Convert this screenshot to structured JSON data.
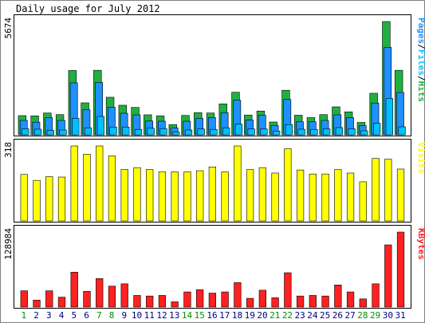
{
  "chart_data": {
    "type": "bar",
    "title": "Daily usage for July 2012",
    "categories": [
      "1",
      "2",
      "3",
      "4",
      "5",
      "6",
      "7",
      "8",
      "9",
      "10",
      "11",
      "12",
      "13",
      "14",
      "15",
      "16",
      "17",
      "18",
      "19",
      "20",
      "21",
      "22",
      "23",
      "24",
      "25",
      "26",
      "27",
      "28",
      "29",
      "30",
      "31"
    ],
    "weekend_days": [
      "1",
      "7",
      "8",
      "14",
      "15",
      "21",
      "22",
      "28",
      "29"
    ],
    "colors": {
      "pages": "#1e90ff",
      "files": "#00bfff",
      "hits": "#20b040",
      "visits": "#ffff00",
      "kbytes": "#ff2020",
      "weekday_label": "#000080",
      "weekend_label": "#009000"
    },
    "panels": [
      {
        "name": "hits-files-pages",
        "max_label": "5674",
        "ymax": 5674,
        "side_label_parts": [
          {
            "text": "Pages",
            "color": "#1e90ff"
          },
          {
            "text": "/",
            "color": "#000000"
          },
          {
            "text": "Files",
            "color": "#00bfff"
          },
          {
            "text": "/",
            "color": "#000000"
          },
          {
            "text": "Hits",
            "color": "#20b040"
          }
        ],
        "series": [
          {
            "name": "Hits",
            "color": "#20b040",
            "values": [
              960,
              950,
              1090,
              1010,
              3220,
              1600,
              3230,
              1880,
              1480,
              1370,
              1000,
              950,
              510,
              970,
              1110,
              1090,
              1550,
              2130,
              990,
              1190,
              640,
              2230,
              980,
              860,
              1010,
              1400,
              1150,
              620,
              2080,
              5674,
              3230
            ]
          },
          {
            "name": "Files",
            "color": "#1e90ff",
            "values": [
              720,
              630,
              860,
              720,
              2600,
              1250,
              2620,
              1380,
              1080,
              1000,
              690,
              680,
              350,
              680,
              820,
              860,
              1110,
              1730,
              740,
              980,
              470,
              1770,
              650,
              650,
              720,
              1000,
              860,
              460,
              1590,
              4380,
              2120
            ]
          },
          {
            "name": "Pages",
            "color": "#00bfff",
            "values": [
              300,
              280,
              220,
              240,
              820,
              350,
              920,
              390,
              390,
              270,
              330,
              310,
              140,
              240,
              290,
              270,
              350,
              530,
              290,
              290,
              190,
              510,
              280,
              270,
              300,
              360,
              300,
              200,
              580,
              1820,
              400
            ]
          }
        ]
      },
      {
        "name": "visits",
        "max_label": "318",
        "ymax": 318,
        "side_label": "Visits",
        "series": [
          {
            "name": "Visits",
            "color": "#ffff00",
            "values": [
              197,
              172,
              188,
              186,
              318,
              283,
              318,
              276,
              218,
              226,
              218,
              208,
              208,
              208,
              213,
              229,
              208,
              318,
              218,
              226,
              203,
              306,
              216,
              199,
              199,
              218,
              203,
              166,
              265,
              262,
              220
            ]
          }
        ]
      },
      {
        "name": "kbytes",
        "max_label": "128984",
        "ymax": 128984,
        "side_label": "KBytes",
        "series": [
          {
            "name": "KBytes",
            "color": "#ff2020",
            "values": [
              28000,
              12000,
              28000,
              17000,
              60000,
              27000,
              49000,
              36000,
              40000,
              20000,
              19000,
              20000,
              9000,
              26000,
              30000,
              24000,
              26000,
              42000,
              15000,
              29000,
              16000,
              59000,
              19000,
              20000,
              19000,
              38000,
              26000,
              14000,
              40000,
              107000,
              128984
            ]
          }
        ]
      }
    ]
  }
}
